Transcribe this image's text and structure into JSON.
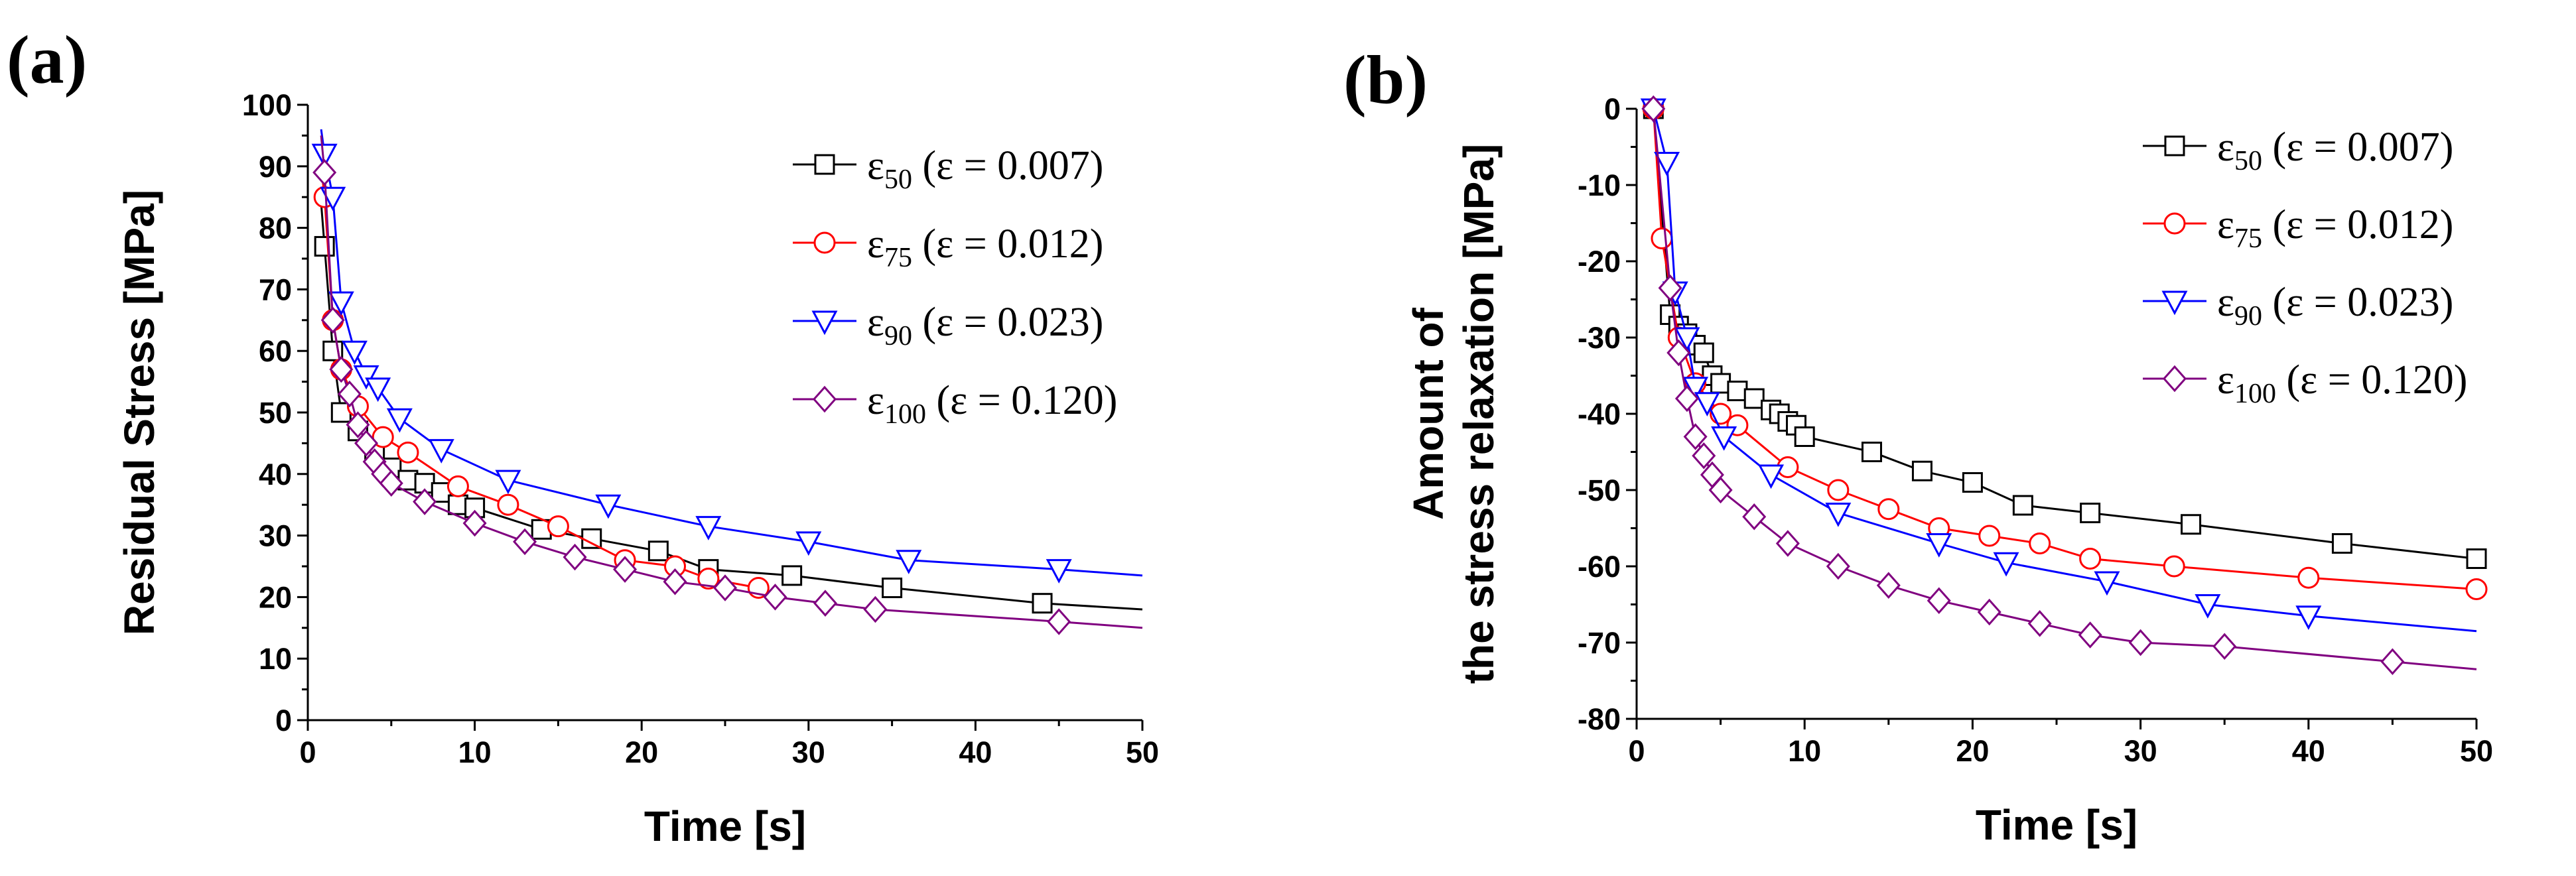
{
  "panels": {
    "a": {
      "label": "(a)"
    },
    "b": {
      "label": "(b)"
    }
  },
  "chart_data": [
    {
      "panel": "a",
      "type": "line",
      "title": "",
      "xlabel": "Time [s]",
      "ylabel": "Residual Stress [MPa]",
      "xlim": [
        0,
        50
      ],
      "ylim": [
        0,
        100
      ],
      "xticks": [
        0,
        10,
        20,
        30,
        40,
        50
      ],
      "yticks": [
        0,
        10,
        20,
        30,
        40,
        50,
        60,
        70,
        80,
        90,
        100
      ],
      "grid": false,
      "legend_position": "top-right",
      "series": [
        {
          "name": "ε50 (ε = 0.007)",
          "symbol": "ε",
          "sub": "50",
          "suffix": " (ε = 0.007)",
          "color": "#000000",
          "marker": "square",
          "x": [
            1,
            1.5,
            2,
            3,
            4,
            5,
            6,
            7,
            8,
            9,
            10,
            14,
            17,
            21,
            24,
            29,
            35,
            44
          ],
          "y": [
            77,
            60,
            50,
            47,
            44,
            41,
            39,
            38.5,
            37,
            35,
            34.5,
            31,
            29.5,
            27.5,
            24.5,
            23.5,
            21.5,
            19
          ],
          "curve_x": [
            0.8,
            1,
            1.5,
            2,
            3,
            4,
            5,
            6,
            7,
            8,
            9,
            10,
            14,
            17,
            21,
            24,
            29,
            35,
            44,
            50
          ],
          "curve_y": [
            84,
            77,
            60,
            50,
            47,
            44,
            41,
            39,
            38.5,
            37,
            35,
            34.5,
            31,
            29.5,
            27.5,
            24.5,
            23.5,
            21.5,
            19,
            18
          ]
        },
        {
          "name": "ε75 (ε = 0.012)",
          "symbol": "ε",
          "sub": "75",
          "suffix": " (ε = 0.012)",
          "color": "#ff0000",
          "marker": "circle",
          "x": [
            1,
            1.5,
            2,
            3,
            4.5,
            6,
            9,
            12,
            15,
            19,
            22,
            24,
            27
          ],
          "y": [
            85,
            65,
            57,
            51,
            46,
            43.5,
            38,
            35,
            31.5,
            26,
            25,
            23,
            21.5
          ],
          "curve_x": [
            0.8,
            1,
            1.5,
            2,
            3,
            4.5,
            6,
            9,
            12,
            15,
            19,
            22,
            24,
            27
          ],
          "curve_y": [
            90,
            85,
            65,
            57,
            51,
            46,
            43.5,
            38,
            35,
            31.5,
            26,
            25,
            23,
            21.5
          ]
        },
        {
          "name": "ε90 (ε = 0.023)",
          "symbol": "ε",
          "sub": "90",
          "suffix": " (ε = 0.023)",
          "color": "#0000ff",
          "marker": "triangle-down",
          "x": [
            1,
            1.5,
            2,
            2.8,
            3.5,
            4.2,
            5.5,
            8,
            12,
            18,
            24,
            30,
            36,
            45
          ],
          "y": [
            92,
            85,
            68,
            60,
            56,
            54,
            49,
            44,
            39,
            35,
            31.5,
            29,
            26,
            24.5
          ],
          "curve_x": [
            0.8,
            1,
            1.5,
            2,
            2.8,
            3.5,
            4.2,
            5.5,
            8,
            12,
            18,
            24,
            30,
            36,
            45,
            50
          ],
          "curve_y": [
            96,
            92,
            85,
            68,
            60,
            56,
            54,
            49,
            44,
            39,
            35,
            31.5,
            29,
            26,
            24.5,
            23.5
          ]
        },
        {
          "name": "ε100 (ε = 0.120)",
          "symbol": "ε",
          "sub": "100",
          "suffix": " (ε = 0.120)",
          "color": "#800080",
          "marker": "diamond",
          "x": [
            1,
            1.5,
            2,
            2.5,
            3,
            3.5,
            4,
            4.5,
            5,
            7,
            10,
            13,
            16,
            19,
            22,
            25,
            28,
            31,
            34,
            45
          ],
          "y": [
            89,
            65,
            57,
            53,
            48,
            45,
            42,
            40,
            38.5,
            35.5,
            32,
            29,
            26.5,
            24.5,
            22.5,
            21.5,
            20,
            19,
            18,
            16
          ],
          "curve_x": [
            0.8,
            1,
            1.5,
            2,
            2.5,
            3,
            3.5,
            4,
            4.5,
            5,
            7,
            10,
            13,
            16,
            19,
            22,
            25,
            28,
            31,
            34,
            45,
            50
          ],
          "curve_y": [
            95,
            89,
            65,
            57,
            53,
            48,
            45,
            42,
            40,
            38.5,
            35.5,
            32,
            29,
            26.5,
            24.5,
            22.5,
            21.5,
            20,
            19,
            18,
            16,
            15
          ]
        }
      ]
    },
    {
      "panel": "b",
      "type": "line",
      "title": "",
      "xlabel": "Time [s]",
      "ylabel_line1": "Amount of",
      "ylabel_line2": "the stress relaxation [MPa]",
      "xlim": [
        0,
        50
      ],
      "ylim": [
        -80,
        0
      ],
      "xticks": [
        0,
        10,
        20,
        30,
        40,
        50
      ],
      "yticks": [
        -80,
        -70,
        -60,
        -50,
        -40,
        -30,
        -20,
        -10,
        0
      ],
      "grid": false,
      "legend_position": "top-right",
      "series": [
        {
          "name": "ε50 (ε = 0.007)",
          "symbol": "ε",
          "sub": "50",
          "suffix": " (ε = 0.007)",
          "color": "#000000",
          "marker": "square",
          "x": [
            1,
            2,
            2.5,
            3,
            3.5,
            4,
            4.5,
            5,
            6,
            7,
            8,
            8.5,
            9,
            9.5,
            10,
            14,
            17,
            20,
            23,
            27,
            33,
            42,
            50
          ],
          "y": [
            0,
            -27,
            -28.5,
            -29.5,
            -31,
            -32,
            -35,
            -36,
            -37,
            -38,
            -39.5,
            -40,
            -41,
            -41.5,
            -43,
            -45,
            -47.5,
            -49,
            -52,
            -53,
            -54.5,
            -57,
            -59
          ],
          "curve_x": [
            1,
            2,
            2.5,
            3,
            3.5,
            4,
            4.5,
            5,
            6,
            7,
            8,
            8.5,
            9,
            9.5,
            10,
            14,
            17,
            20,
            23,
            27,
            33,
            42,
            50
          ],
          "curve_y": [
            0,
            -27,
            -28.5,
            -29.5,
            -31,
            -32,
            -35,
            -36,
            -37,
            -38,
            -39.5,
            -40,
            -41,
            -41.5,
            -43,
            -45,
            -47.5,
            -49,
            -52,
            -53,
            -54.5,
            -57,
            -59
          ]
        },
        {
          "name": "ε75 (ε = 0.012)",
          "symbol": "ε",
          "sub": "75",
          "suffix": " (ε = 0.012)",
          "color": "#ff0000",
          "marker": "circle",
          "x": [
            1,
            1.5,
            2.5,
            3.5,
            5,
            6,
            9,
            12,
            15,
            18,
            21,
            24,
            27,
            32,
            40,
            50
          ],
          "y": [
            0,
            -17,
            -30,
            -36,
            -40,
            -41.5,
            -47,
            -50,
            -52.5,
            -55,
            -56,
            -57,
            -59,
            -60,
            -61.5,
            -63
          ],
          "curve_x": [
            1,
            1.5,
            2.5,
            3.5,
            5,
            6,
            9,
            12,
            15,
            18,
            21,
            24,
            27,
            32,
            40,
            50
          ],
          "curve_y": [
            0,
            -17,
            -30,
            -36,
            -40,
            -41.5,
            -47,
            -50,
            -52.5,
            -55,
            -56,
            -57,
            -59,
            -60,
            -61.5,
            -63
          ]
        },
        {
          "name": "ε90 (ε = 0.023)",
          "symbol": "ε",
          "sub": "90",
          "suffix": " (ε = 0.023)",
          "color": "#0000ff",
          "marker": "triangle-down",
          "x": [
            1,
            1.8,
            2.3,
            3,
            3.5,
            4.2,
            5.2,
            8,
            12,
            18,
            22,
            28,
            34,
            40
          ],
          "y": [
            0,
            -7,
            -24,
            -30,
            -36.5,
            -38.5,
            -43,
            -48,
            -53,
            -57,
            -59.5,
            -62,
            -65,
            -66.5
          ],
          "curve_x": [
            1,
            1.8,
            2.3,
            3,
            3.5,
            4.2,
            5.2,
            8,
            12,
            18,
            22,
            28,
            34,
            40,
            50
          ],
          "curve_y": [
            0,
            -7,
            -24,
            -30,
            -36.5,
            -38.5,
            -43,
            -48,
            -53,
            -57,
            -59.5,
            -62,
            -65,
            -66.5,
            -68.5
          ]
        },
        {
          "name": "ε100 (ε = 0.120)",
          "symbol": "ε",
          "sub": "100",
          "suffix": " (ε = 0.120)",
          "color": "#800080",
          "marker": "diamond",
          "x": [
            1,
            2,
            2.5,
            3,
            3.5,
            4,
            4.5,
            5,
            7,
            9,
            12,
            15,
            18,
            21,
            24,
            27,
            30,
            35,
            45
          ],
          "y": [
            0,
            -23.5,
            -32,
            -38,
            -43,
            -45.5,
            -48,
            -50,
            -53.5,
            -57,
            -60,
            -62.5,
            -64.5,
            -66,
            -67.5,
            -69,
            -70,
            -70.5,
            -72.5
          ],
          "curve_x": [
            1,
            2,
            2.5,
            3,
            3.5,
            4,
            4.5,
            5,
            7,
            9,
            12,
            15,
            18,
            21,
            24,
            27,
            30,
            35,
            45,
            50
          ],
          "curve_y": [
            0,
            -23.5,
            -32,
            -38,
            -43,
            -45.5,
            -48,
            -50,
            -53.5,
            -57,
            -60,
            -62.5,
            -64.5,
            -66,
            -67.5,
            -69,
            -70,
            -70.5,
            -72.5,
            -73.5
          ]
        }
      ]
    }
  ]
}
